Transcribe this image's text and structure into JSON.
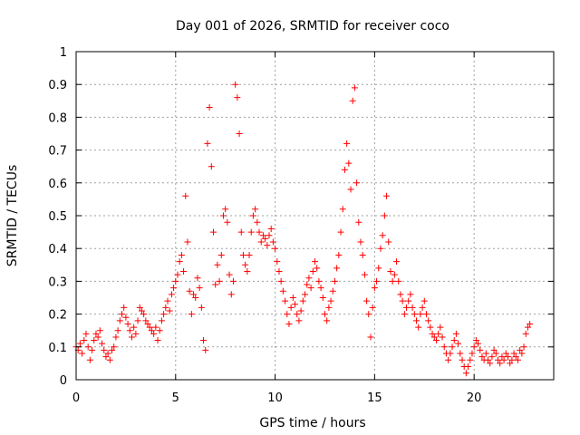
{
  "chart_data": {
    "type": "scatter",
    "title": "Day 001 of 2026, SRMTID for receiver coco",
    "xlabel": "GPS time / hours",
    "ylabel": "SRMTID / TECUs",
    "xlim": [
      0,
      24
    ],
    "ylim": [
      0,
      1
    ],
    "x_ticks": [
      0,
      5,
      10,
      15,
      20
    ],
    "x_tick_labels": [
      "0",
      "5",
      "10",
      "15",
      "20"
    ],
    "y_ticks": [
      0,
      0.1,
      0.2,
      0.3,
      0.4,
      0.5,
      0.6,
      0.7,
      0.8,
      0.9,
      1
    ],
    "y_tick_labels": [
      "0",
      "0.1",
      "0.2",
      "0.3",
      "0.4",
      "0.5",
      "0.6",
      "0.7",
      "0.8",
      "0.9",
      "1"
    ],
    "grid": true,
    "marker": "+",
    "color": "#ff0000",
    "series": [
      {
        "name": "SRMTID",
        "points": [
          [
            0.0,
            0.1
          ],
          [
            0.1,
            0.09
          ],
          [
            0.2,
            0.11
          ],
          [
            0.3,
            0.08
          ],
          [
            0.4,
            0.12
          ],
          [
            0.5,
            0.14
          ],
          [
            0.6,
            0.1
          ],
          [
            0.7,
            0.06
          ],
          [
            0.8,
            0.09
          ],
          [
            0.9,
            0.12
          ],
          [
            1.0,
            0.14
          ],
          [
            1.1,
            0.13
          ],
          [
            1.2,
            0.15
          ],
          [
            1.3,
            0.11
          ],
          [
            1.4,
            0.09
          ],
          [
            1.5,
            0.07
          ],
          [
            1.6,
            0.08
          ],
          [
            1.7,
            0.06
          ],
          [
            1.8,
            0.09
          ],
          [
            1.9,
            0.1
          ],
          [
            2.0,
            0.13
          ],
          [
            2.1,
            0.15
          ],
          [
            2.2,
            0.18
          ],
          [
            2.3,
            0.2
          ],
          [
            2.4,
            0.22
          ],
          [
            2.5,
            0.19
          ],
          [
            2.6,
            0.17
          ],
          [
            2.7,
            0.15
          ],
          [
            2.8,
            0.13
          ],
          [
            2.9,
            0.16
          ],
          [
            3.0,
            0.14
          ],
          [
            3.1,
            0.18
          ],
          [
            3.2,
            0.22
          ],
          [
            3.3,
            0.21
          ],
          [
            3.4,
            0.2
          ],
          [
            3.5,
            0.18
          ],
          [
            3.6,
            0.17
          ],
          [
            3.7,
            0.16
          ],
          [
            3.8,
            0.15
          ],
          [
            3.9,
            0.14
          ],
          [
            4.0,
            0.16
          ],
          [
            4.1,
            0.12
          ],
          [
            4.2,
            0.15
          ],
          [
            4.3,
            0.18
          ],
          [
            4.4,
            0.2
          ],
          [
            4.5,
            0.22
          ],
          [
            4.6,
            0.24
          ],
          [
            4.7,
            0.21
          ],
          [
            4.8,
            0.26
          ],
          [
            4.9,
            0.28
          ],
          [
            5.0,
            0.3
          ],
          [
            5.1,
            0.32
          ],
          [
            5.2,
            0.36
          ],
          [
            5.3,
            0.38
          ],
          [
            5.4,
            0.33
          ],
          [
            5.5,
            0.56
          ],
          [
            5.6,
            0.42
          ],
          [
            5.7,
            0.27
          ],
          [
            5.8,
            0.2
          ],
          [
            5.9,
            0.26
          ],
          [
            6.0,
            0.25
          ],
          [
            6.1,
            0.31
          ],
          [
            6.2,
            0.28
          ],
          [
            6.3,
            0.22
          ],
          [
            6.4,
            0.12
          ],
          [
            6.5,
            0.09
          ],
          [
            6.6,
            0.72
          ],
          [
            6.7,
            0.83
          ],
          [
            6.8,
            0.65
          ],
          [
            6.9,
            0.45
          ],
          [
            7.0,
            0.29
          ],
          [
            7.1,
            0.35
          ],
          [
            7.2,
            0.3
          ],
          [
            7.3,
            0.38
          ],
          [
            7.4,
            0.5
          ],
          [
            7.5,
            0.52
          ],
          [
            7.6,
            0.48
          ],
          [
            7.7,
            0.32
          ],
          [
            7.8,
            0.26
          ],
          [
            7.9,
            0.3
          ],
          [
            8.0,
            0.9
          ],
          [
            8.1,
            0.86
          ],
          [
            8.2,
            0.75
          ],
          [
            8.3,
            0.45
          ],
          [
            8.4,
            0.38
          ],
          [
            8.5,
            0.35
          ],
          [
            8.6,
            0.33
          ],
          [
            8.7,
            0.38
          ],
          [
            8.8,
            0.45
          ],
          [
            8.9,
            0.5
          ],
          [
            9.0,
            0.52
          ],
          [
            9.1,
            0.48
          ],
          [
            9.2,
            0.45
          ],
          [
            9.3,
            0.42
          ],
          [
            9.4,
            0.44
          ],
          [
            9.5,
            0.43
          ],
          [
            9.6,
            0.41
          ],
          [
            9.7,
            0.44
          ],
          [
            9.8,
            0.46
          ],
          [
            9.9,
            0.42
          ],
          [
            10.0,
            0.4
          ],
          [
            10.1,
            0.36
          ],
          [
            10.2,
            0.33
          ],
          [
            10.3,
            0.3
          ],
          [
            10.4,
            0.27
          ],
          [
            10.5,
            0.24
          ],
          [
            10.6,
            0.2
          ],
          [
            10.7,
            0.17
          ],
          [
            10.8,
            0.22
          ],
          [
            10.9,
            0.25
          ],
          [
            11.0,
            0.23
          ],
          [
            11.1,
            0.2
          ],
          [
            11.2,
            0.18
          ],
          [
            11.3,
            0.21
          ],
          [
            11.4,
            0.24
          ],
          [
            11.5,
            0.26
          ],
          [
            11.6,
            0.29
          ],
          [
            11.7,
            0.31
          ],
          [
            11.8,
            0.28
          ],
          [
            11.9,
            0.33
          ],
          [
            12.0,
            0.36
          ],
          [
            12.1,
            0.34
          ],
          [
            12.2,
            0.3
          ],
          [
            12.3,
            0.28
          ],
          [
            12.4,
            0.25
          ],
          [
            12.5,
            0.2
          ],
          [
            12.6,
            0.18
          ],
          [
            12.7,
            0.22
          ],
          [
            12.8,
            0.24
          ],
          [
            12.9,
            0.27
          ],
          [
            13.0,
            0.3
          ],
          [
            13.1,
            0.34
          ],
          [
            13.2,
            0.38
          ],
          [
            13.3,
            0.45
          ],
          [
            13.4,
            0.52
          ],
          [
            13.5,
            0.64
          ],
          [
            13.6,
            0.72
          ],
          [
            13.7,
            0.66
          ],
          [
            13.8,
            0.58
          ],
          [
            13.9,
            0.85
          ],
          [
            14.0,
            0.89
          ],
          [
            14.1,
            0.6
          ],
          [
            14.2,
            0.48
          ],
          [
            14.3,
            0.42
          ],
          [
            14.4,
            0.38
          ],
          [
            14.5,
            0.32
          ],
          [
            14.6,
            0.24
          ],
          [
            14.7,
            0.2
          ],
          [
            14.8,
            0.13
          ],
          [
            14.9,
            0.22
          ],
          [
            15.0,
            0.28
          ],
          [
            15.1,
            0.3
          ],
          [
            15.2,
            0.34
          ],
          [
            15.3,
            0.4
          ],
          [
            15.4,
            0.44
          ],
          [
            15.5,
            0.5
          ],
          [
            15.6,
            0.56
          ],
          [
            15.7,
            0.42
          ],
          [
            15.8,
            0.33
          ],
          [
            15.9,
            0.3
          ],
          [
            16.0,
            0.32
          ],
          [
            16.1,
            0.36
          ],
          [
            16.2,
            0.3
          ],
          [
            16.3,
            0.26
          ],
          [
            16.4,
            0.24
          ],
          [
            16.5,
            0.2
          ],
          [
            16.6,
            0.22
          ],
          [
            16.7,
            0.24
          ],
          [
            16.8,
            0.26
          ],
          [
            16.9,
            0.22
          ],
          [
            17.0,
            0.2
          ],
          [
            17.1,
            0.18
          ],
          [
            17.2,
            0.16
          ],
          [
            17.3,
            0.2
          ],
          [
            17.4,
            0.22
          ],
          [
            17.5,
            0.24
          ],
          [
            17.6,
            0.2
          ],
          [
            17.7,
            0.18
          ],
          [
            17.8,
            0.16
          ],
          [
            17.9,
            0.14
          ],
          [
            18.0,
            0.13
          ],
          [
            18.1,
            0.12
          ],
          [
            18.2,
            0.14
          ],
          [
            18.3,
            0.16
          ],
          [
            18.4,
            0.13
          ],
          [
            18.5,
            0.1
          ],
          [
            18.6,
            0.08
          ],
          [
            18.7,
            0.06
          ],
          [
            18.8,
            0.08
          ],
          [
            18.9,
            0.1
          ],
          [
            19.0,
            0.12
          ],
          [
            19.1,
            0.14
          ],
          [
            19.2,
            0.11
          ],
          [
            19.3,
            0.08
          ],
          [
            19.4,
            0.06
          ],
          [
            19.5,
            0.04
          ],
          [
            19.6,
            0.02
          ],
          [
            19.7,
            0.04
          ],
          [
            19.8,
            0.06
          ],
          [
            19.9,
            0.08
          ],
          [
            20.0,
            0.1
          ],
          [
            20.1,
            0.12
          ],
          [
            20.2,
            0.11
          ],
          [
            20.3,
            0.09
          ],
          [
            20.4,
            0.07
          ],
          [
            20.5,
            0.06
          ],
          [
            20.6,
            0.08
          ],
          [
            20.7,
            0.06
          ],
          [
            20.8,
            0.05
          ],
          [
            20.9,
            0.07
          ],
          [
            21.0,
            0.09
          ],
          [
            21.1,
            0.08
          ],
          [
            21.2,
            0.06
          ],
          [
            21.3,
            0.05
          ],
          [
            21.4,
            0.07
          ],
          [
            21.5,
            0.06
          ],
          [
            21.6,
            0.08
          ],
          [
            21.7,
            0.07
          ],
          [
            21.8,
            0.05
          ],
          [
            21.9,
            0.06
          ],
          [
            22.0,
            0.08
          ],
          [
            22.1,
            0.07
          ],
          [
            22.2,
            0.06
          ],
          [
            22.3,
            0.09
          ],
          [
            22.4,
            0.08
          ],
          [
            22.5,
            0.1
          ],
          [
            22.6,
            0.14
          ],
          [
            22.7,
            0.16
          ],
          [
            22.8,
            0.17
          ]
        ]
      }
    ]
  }
}
